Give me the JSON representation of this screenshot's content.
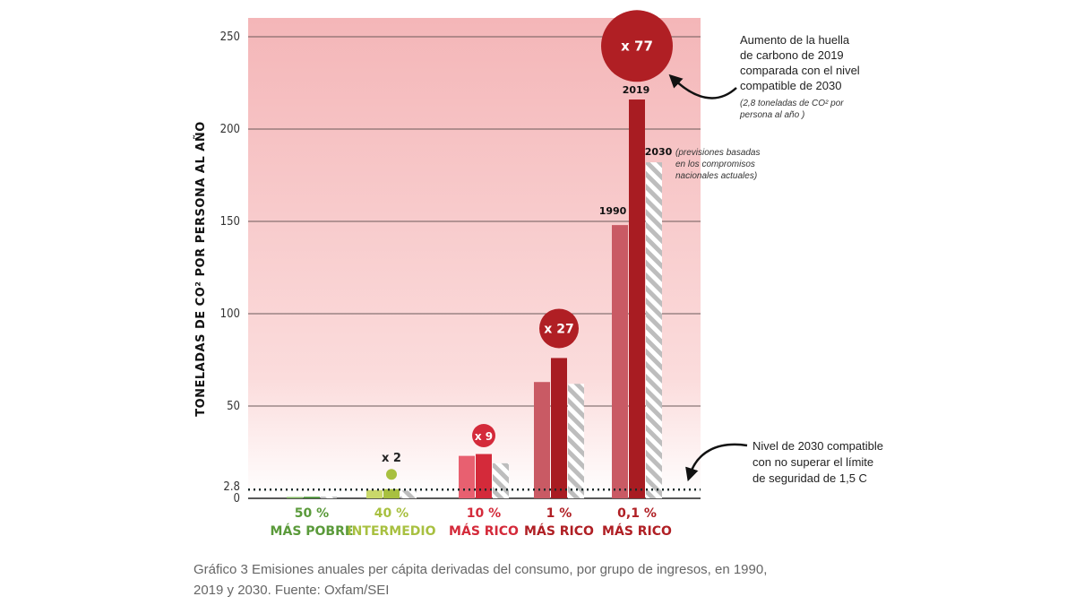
{
  "chart_data": {
    "type": "bar",
    "ylabel": "TONELADAS DE CO² POR PERSONA AL AÑO",
    "ylim": [
      0,
      260
    ],
    "yticks": [
      0,
      50,
      100,
      150,
      200,
      250
    ],
    "reference_line": {
      "value": 2.8,
      "label": "2.8"
    },
    "categories": [
      {
        "line1": "50 %",
        "line2": "MÁS POBRE",
        "color": "#5a9a3a"
      },
      {
        "line1": "40 %",
        "line2": "INTERMEDIO",
        "color": "#a8c040"
      },
      {
        "line1": "10 %",
        "line2": "MÁS RICO",
        "color": "#d42a3a"
      },
      {
        "line1": "1 %",
        "line2": "MÁS RICO",
        "color": "#b01f24"
      },
      {
        "line1": "0,1 %",
        "line2": "MÁS RICO",
        "color": "#b01f24"
      }
    ],
    "series": [
      {
        "name": "1990",
        "values": [
          0.7,
          4.5,
          23,
          63,
          148
        ],
        "colors": [
          "#7bb35a",
          "#c9d86a",
          "#e86070",
          "#c95a64",
          "#c95a64"
        ]
      },
      {
        "name": "2019",
        "values": [
          0.8,
          5,
          24,
          76,
          216
        ],
        "colors": [
          "#3f8a2a",
          "#a8c040",
          "#d42a3a",
          "#a81c22",
          "#a81c22"
        ]
      },
      {
        "name": "2030",
        "values": [
          0.9,
          4.2,
          19,
          62,
          182
        ],
        "pattern": "hatch"
      }
    ],
    "multipliers": [
      {
        "category": 1,
        "text": "x 2",
        "value_at": 13,
        "style": "dot",
        "color": "#a8c040"
      },
      {
        "category": 2,
        "text": "x 9",
        "value_at": 34,
        "style": "circle",
        "color": "#d42a3a"
      },
      {
        "category": 3,
        "text": "x 27",
        "value_at": 92,
        "style": "circle",
        "color": "#b01f24"
      },
      {
        "category": 4,
        "text": "x 77",
        "value_at": 245,
        "style": "circle",
        "color": "#b01f24"
      }
    ],
    "annotations": {
      "top_right_lines": [
        "Aumento de la huella",
        "de carbono de 2019",
        "comparada con el nivel",
        "compatible de 2030"
      ],
      "top_right_note": [
        "(2,8 toneladas de CO² por",
        "persona al año )"
      ],
      "label_1990": "1990",
      "label_2019": "2019",
      "label_2030": "2030",
      "note_2030": [
        "(previsiones basadas",
        "en los compromisos",
        "nacionales actuales)"
      ],
      "bottom_right_lines": [
        "Nivel de 2030 compatible",
        "con no superar el límite",
        "de seguridad de 1,5 C"
      ]
    }
  },
  "caption": {
    "line1": "Gráfico 3 Emisiones anuales per cápita derivadas del consumo, por grupo de ingresos, en 1990,",
    "line2": "2019 y 2030. Fuente: Oxfam/SEI"
  }
}
